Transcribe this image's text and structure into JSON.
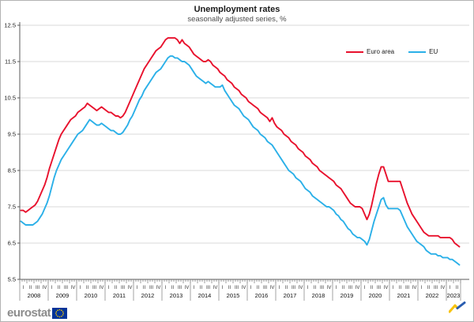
{
  "title": "Unemployment rates",
  "subtitle": "seasonally adjusted series, %",
  "legend": {
    "position": "top-right",
    "items": [
      {
        "label": "Euro area",
        "color": "#e8112d"
      },
      {
        "label": "EU",
        "color": "#2bb0e8"
      }
    ]
  },
  "footer": {
    "brand": "eurostat"
  },
  "icons": {
    "flag": "eu-flag-icon",
    "trend": "trend-logo-icon"
  },
  "colors": {
    "euro_area_line": "#e8112d",
    "eu_line": "#2bb0e8",
    "gridline": "#d9d9d9",
    "axis": "#595959",
    "eu_flag_blue": "#003399",
    "eu_flag_stars": "#ffcc00",
    "logo_yellow": "#f8c30e",
    "logo_blue": "#2a5db0"
  },
  "chart_data": {
    "type": "line",
    "title": "Unemployment rates",
    "subtitle": "seasonally adjusted series, %",
    "xlabel": "",
    "ylabel": "%",
    "ylim": [
      5.5,
      12.5
    ],
    "yticks": [
      5.5,
      6.5,
      7.5,
      8.5,
      9.5,
      10.5,
      11.5,
      12.5
    ],
    "grid": "horizontal",
    "legend_position": "top-right",
    "x_frequency": "monthly",
    "x_start": "2008-01",
    "x_end": "2023-06",
    "years": [
      {
        "label": "2008",
        "quarters": [
          "I",
          "II",
          "III",
          "IV"
        ]
      },
      {
        "label": "2009",
        "quarters": [
          "I",
          "II",
          "III",
          "IV"
        ]
      },
      {
        "label": "2010",
        "quarters": [
          "I",
          "II",
          "III",
          "IV"
        ]
      },
      {
        "label": "2011",
        "quarters": [
          "I",
          "II",
          "III",
          "IV"
        ]
      },
      {
        "label": "2012",
        "quarters": [
          "I",
          "II",
          "III",
          "IV"
        ]
      },
      {
        "label": "2013",
        "quarters": [
          "I",
          "II",
          "III",
          "IV"
        ]
      },
      {
        "label": "2014",
        "quarters": [
          "I",
          "II",
          "III",
          "IV"
        ]
      },
      {
        "label": "2015",
        "quarters": [
          "I",
          "II",
          "III",
          "IV"
        ]
      },
      {
        "label": "2016",
        "quarters": [
          "I",
          "II",
          "III",
          "IV"
        ]
      },
      {
        "label": "2017",
        "quarters": [
          "I",
          "II",
          "III",
          "IV"
        ]
      },
      {
        "label": "2018",
        "quarters": [
          "I",
          "II",
          "III",
          "IV"
        ]
      },
      {
        "label": "2019",
        "quarters": [
          "I",
          "II",
          "III",
          "IV"
        ]
      },
      {
        "label": "2020",
        "quarters": [
          "I",
          "II",
          "III",
          "IV"
        ]
      },
      {
        "label": "2021",
        "quarters": [
          "I",
          "II",
          "III",
          "IV"
        ]
      },
      {
        "label": "2022",
        "quarters": [
          "I",
          "II",
          "III",
          "IV"
        ]
      },
      {
        "label": "2023",
        "quarters": [
          "I",
          "II"
        ]
      }
    ],
    "series": [
      {
        "name": "Euro area",
        "color": "#e8112d",
        "values": [
          7.4,
          7.4,
          7.35,
          7.4,
          7.45,
          7.5,
          7.55,
          7.65,
          7.8,
          7.95,
          8.1,
          8.3,
          8.55,
          8.75,
          8.95,
          9.15,
          9.35,
          9.5,
          9.6,
          9.7,
          9.8,
          9.9,
          9.95,
          10.0,
          10.1,
          10.15,
          10.2,
          10.25,
          10.35,
          10.3,
          10.25,
          10.2,
          10.15,
          10.2,
          10.25,
          10.2,
          10.15,
          10.1,
          10.1,
          10.05,
          10.0,
          10.0,
          9.95,
          10.0,
          10.1,
          10.25,
          10.4,
          10.55,
          10.7,
          10.85,
          11.0,
          11.15,
          11.3,
          11.4,
          11.5,
          11.6,
          11.7,
          11.8,
          11.85,
          11.9,
          12.0,
          12.1,
          12.15,
          12.15,
          12.15,
          12.15,
          12.1,
          12.0,
          12.1,
          12.0,
          11.95,
          11.9,
          11.8,
          11.7,
          11.65,
          11.6,
          11.55,
          11.5,
          11.5,
          11.55,
          11.5,
          11.4,
          11.35,
          11.3,
          11.2,
          11.15,
          11.1,
          11.0,
          10.95,
          10.9,
          10.8,
          10.75,
          10.7,
          10.6,
          10.55,
          10.5,
          10.4,
          10.35,
          10.3,
          10.25,
          10.2,
          10.1,
          10.05,
          10.0,
          9.95,
          9.85,
          9.95,
          9.8,
          9.7,
          9.65,
          9.6,
          9.5,
          9.45,
          9.4,
          9.3,
          9.25,
          9.2,
          9.1,
          9.05,
          9.0,
          8.9,
          8.85,
          8.8,
          8.7,
          8.65,
          8.6,
          8.5,
          8.45,
          8.4,
          8.35,
          8.3,
          8.25,
          8.2,
          8.1,
          8.05,
          8.0,
          7.9,
          7.8,
          7.7,
          7.6,
          7.55,
          7.5,
          7.5,
          7.5,
          7.45,
          7.3,
          7.15,
          7.3,
          7.55,
          7.85,
          8.15,
          8.4,
          8.6,
          8.6,
          8.4,
          8.2,
          8.2,
          8.2,
          8.2,
          8.2,
          8.2,
          8.0,
          7.8,
          7.6,
          7.45,
          7.3,
          7.2,
          7.1,
          7.0,
          6.9,
          6.8,
          6.75,
          6.7,
          6.7,
          6.7,
          6.7,
          6.7,
          6.65,
          6.65,
          6.65,
          6.65,
          6.65,
          6.6,
          6.5,
          6.45,
          6.4
        ]
      },
      {
        "name": "EU",
        "color": "#2bb0e8",
        "values": [
          7.1,
          7.05,
          7.0,
          7.0,
          7.0,
          7.0,
          7.05,
          7.1,
          7.2,
          7.3,
          7.45,
          7.6,
          7.8,
          8.05,
          8.3,
          8.5,
          8.65,
          8.8,
          8.9,
          9.0,
          9.1,
          9.2,
          9.3,
          9.4,
          9.5,
          9.55,
          9.6,
          9.7,
          9.8,
          9.9,
          9.85,
          9.8,
          9.75,
          9.75,
          9.8,
          9.75,
          9.7,
          9.65,
          9.6,
          9.6,
          9.55,
          9.5,
          9.5,
          9.55,
          9.65,
          9.75,
          9.9,
          10.0,
          10.15,
          10.3,
          10.45,
          10.55,
          10.7,
          10.8,
          10.9,
          11.0,
          11.1,
          11.2,
          11.25,
          11.3,
          11.4,
          11.5,
          11.6,
          11.65,
          11.65,
          11.6,
          11.6,
          11.55,
          11.5,
          11.5,
          11.45,
          11.4,
          11.3,
          11.2,
          11.1,
          11.05,
          11.0,
          10.95,
          10.9,
          10.95,
          10.9,
          10.85,
          10.8,
          10.8,
          10.8,
          10.85,
          10.7,
          10.6,
          10.5,
          10.4,
          10.3,
          10.25,
          10.2,
          10.1,
          10.0,
          9.95,
          9.9,
          9.8,
          9.7,
          9.65,
          9.6,
          9.5,
          9.45,
          9.4,
          9.3,
          9.25,
          9.2,
          9.1,
          9.0,
          8.9,
          8.8,
          8.7,
          8.6,
          8.5,
          8.45,
          8.4,
          8.3,
          8.25,
          8.2,
          8.1,
          8.0,
          7.95,
          7.9,
          7.8,
          7.75,
          7.7,
          7.65,
          7.6,
          7.55,
          7.5,
          7.5,
          7.45,
          7.4,
          7.3,
          7.25,
          7.15,
          7.1,
          7.0,
          6.9,
          6.85,
          6.75,
          6.7,
          6.65,
          6.65,
          6.6,
          6.55,
          6.45,
          6.6,
          6.85,
          7.1,
          7.3,
          7.5,
          7.7,
          7.75,
          7.55,
          7.45,
          7.45,
          7.45,
          7.45,
          7.45,
          7.4,
          7.25,
          7.1,
          6.95,
          6.85,
          6.75,
          6.65,
          6.55,
          6.5,
          6.45,
          6.4,
          6.3,
          6.25,
          6.2,
          6.2,
          6.2,
          6.15,
          6.15,
          6.1,
          6.1,
          6.1,
          6.05,
          6.05,
          6.0,
          5.95,
          5.9
        ]
      }
    ]
  }
}
